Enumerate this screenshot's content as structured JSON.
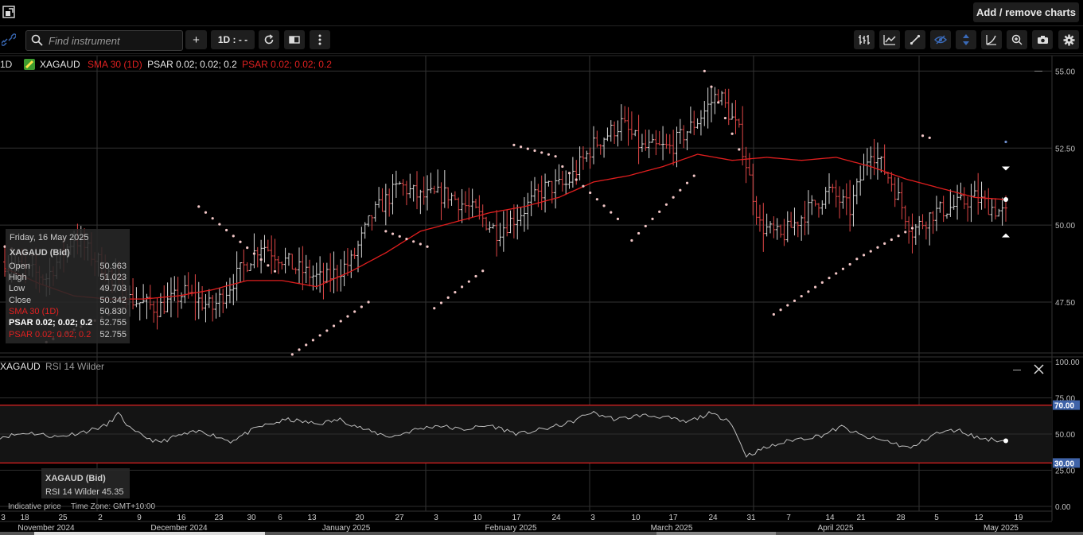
{
  "header": {
    "add_remove_label": "Add / remove charts"
  },
  "toolbar": {
    "search_placeholder": "Find instrument",
    "add_label": "+",
    "interval_label": "1D : - -"
  },
  "legend": {
    "interval": "1D",
    "instrument": "XAGAUD",
    "sma_label": "SMA 30 (1D)",
    "psar1_label": "PSAR 0.02; 0.02; 0.2",
    "psar2_label": "PSAR 0.02; 0.02; 0.2"
  },
  "tooltip": {
    "date": "Friday, 16 May 2025",
    "instrument": "XAGAUD (Bid)",
    "rows": [
      {
        "label": "Open",
        "value": "50.963"
      },
      {
        "label": "High",
        "value": "51.023"
      },
      {
        "label": "Low",
        "value": "49.703"
      },
      {
        "label": "Close",
        "value": "50.342"
      },
      {
        "label": "SMA 30 (1D)",
        "value": "50.830"
      },
      {
        "label": "PSAR 0.02; 0.02; 0.2",
        "value": "52.755"
      },
      {
        "label": "PSAR 0.02; 0.02; 0.2",
        "value": "52.755"
      }
    ]
  },
  "rsi_panel": {
    "title_instrument": "XAGAUD",
    "title_indicator": "RSI 14 Wilder",
    "tooltip_instrument": "XAGAUD (Bid)",
    "tooltip_value": "RSI 14 Wilder 45.35"
  },
  "footer": {
    "indicative": "Indicative price",
    "timezone": "Time Zone: GMT+10:00"
  },
  "colors": {
    "background": "#000000",
    "price_up_bar": "#d8d8d8",
    "price_down_bar": "#e04646",
    "sma": "#e01e1e",
    "psar_dots": "#f2c6c6",
    "rsi_line": "#bdbdbd",
    "rsi_band_line": "#e02020",
    "rsi_tag": "#3f63a8"
  },
  "chart_data": [
    {
      "type": "ohlc",
      "title": "XAGAUD",
      "yticks": [
        47.5,
        50.0,
        52.5,
        55.0
      ],
      "ylim": [
        45.9,
        55.5
      ],
      "grid": true,
      "x_tick_labels": [
        "3",
        "18",
        "25",
        "2",
        "9",
        "16",
        "23",
        "30",
        "6",
        "13",
        "20",
        "27",
        "3",
        "10",
        "17",
        "24",
        "3",
        "10",
        "17",
        "24",
        "31",
        "7",
        "14",
        "21",
        "28",
        "5",
        "12",
        "19"
      ],
      "month_labels": [
        "November 2024",
        "December 2024",
        "January 2025",
        "February 2025",
        "March 2025",
        "April 2025",
        "May 2025"
      ],
      "series": [
        {
          "name": "SMA 30 (1D)",
          "type": "line",
          "anchors": [
            [
              0,
              48.6
            ],
            [
              10,
              48.1
            ],
            [
              20,
              47.7
            ],
            [
              30,
              47.6
            ],
            [
              40,
              47.6
            ],
            [
              50,
              47.7
            ],
            [
              60,
              47.9
            ],
            [
              70,
              48.2
            ],
            [
              80,
              48.2
            ],
            [
              90,
              48.0
            ],
            [
              100,
              48.5
            ],
            [
              110,
              49.1
            ],
            [
              120,
              49.8
            ],
            [
              130,
              50.1
            ],
            [
              140,
              50.4
            ],
            [
              150,
              50.6
            ],
            [
              160,
              50.9
            ],
            [
              170,
              51.4
            ],
            [
              180,
              51.6
            ],
            [
              190,
              51.9
            ],
            [
              200,
              52.3
            ],
            [
              210,
              52.1
            ],
            [
              220,
              52.2
            ],
            [
              230,
              52.1
            ],
            [
              240,
              52.2
            ],
            [
              250,
              51.9
            ],
            [
              260,
              51.5
            ],
            [
              270,
              51.2
            ],
            [
              280,
              50.9
            ],
            [
              289,
              50.83
            ]
          ]
        },
        {
          "name": "PSAR 0.02; 0.02; 0.2",
          "type": "dots",
          "segments": [
            [
              0,
              9,
              49.3,
              49.0
            ],
            [
              12,
              34,
              46.2,
              47.3
            ],
            [
              56,
              78,
              50.6,
              48.5
            ],
            [
              83,
              105,
              45.8,
              47.5
            ],
            [
              110,
              122,
              49.8,
              49.3
            ],
            [
              124,
              139,
              47.3,
              48.6
            ],
            [
              147,
              160,
              52.6,
              52.2
            ],
            [
              161,
              177,
              51.9,
              50.2
            ],
            [
              181,
              199,
              49.5,
              51.6
            ],
            [
              202,
              213,
              55.0,
              52.2
            ],
            [
              222,
              245,
              47.1,
              48.8
            ],
            [
              246,
              262,
              48.9,
              49.9
            ],
            [
              265,
              268,
              52.9,
              52.8
            ]
          ]
        }
      ]
    },
    {
      "type": "line",
      "title": "RSI 14 Wilder",
      "yticks": [
        0,
        25,
        50,
        75,
        100
      ],
      "ylim": [
        0,
        100
      ],
      "bands": [
        30,
        70
      ],
      "last_value": 45.35,
      "anchors": [
        [
          0,
          48
        ],
        [
          10,
          51
        ],
        [
          20,
          48
        ],
        [
          30,
          52
        ],
        [
          37,
          56
        ],
        [
          41,
          64
        ],
        [
          46,
          52
        ],
        [
          55,
          44
        ],
        [
          62,
          49
        ],
        [
          70,
          52
        ],
        [
          80,
          45
        ],
        [
          90,
          55
        ],
        [
          100,
          60
        ],
        [
          110,
          57
        ],
        [
          118,
          60
        ],
        [
          128,
          52
        ],
        [
          136,
          48
        ],
        [
          144,
          53
        ],
        [
          152,
          56
        ],
        [
          160,
          53
        ],
        [
          170,
          56
        ],
        [
          180,
          50
        ],
        [
          190,
          54
        ],
        [
          198,
          58
        ],
        [
          205,
          65
        ],
        [
          214,
          60
        ],
        [
          222,
          63
        ],
        [
          230,
          62
        ],
        [
          238,
          58
        ],
        [
          246,
          64
        ],
        [
          253,
          60
        ],
        [
          259,
          35
        ],
        [
          265,
          40
        ],
        [
          275,
          46
        ],
        [
          285,
          49
        ],
        [
          292,
          55
        ],
        [
          300,
          48
        ],
        [
          308,
          45
        ],
        [
          316,
          40
        ],
        [
          324,
          50
        ],
        [
          332,
          53
        ],
        [
          340,
          47
        ],
        [
          349,
          45.35
        ]
      ]
    }
  ]
}
